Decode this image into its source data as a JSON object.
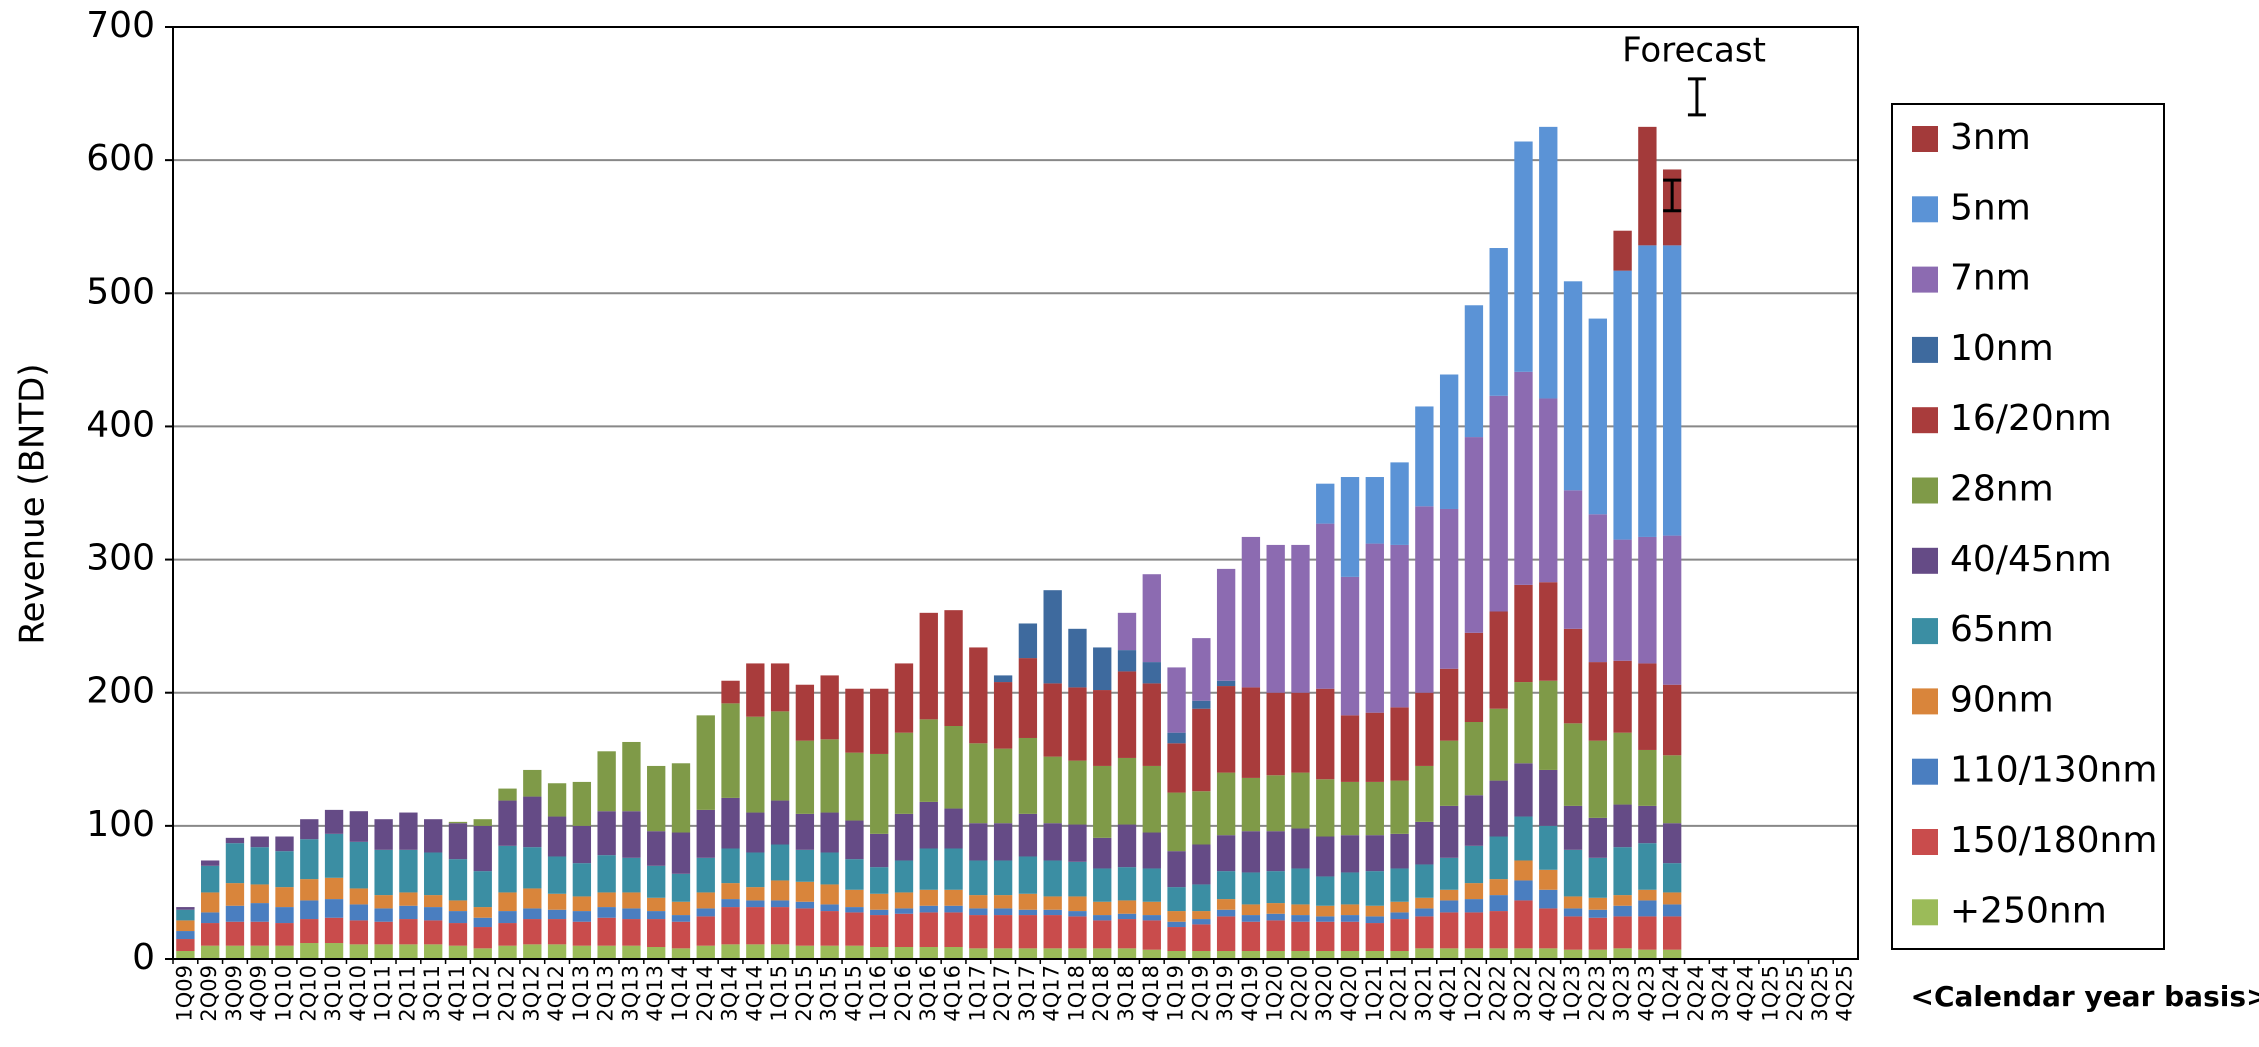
{
  "chart_data": {
    "type": "stacked_bar",
    "y_label": "Revenue (BNTD)",
    "annotations": [
      "Forecast",
      "<Calendar year basis>"
    ],
    "ylim": [
      0,
      700
    ],
    "yticks": [
      0,
      100,
      200,
      300,
      400,
      500,
      600,
      700
    ],
    "grid": true,
    "legend": "right",
    "categories": [
      "1Q09",
      "2Q09",
      "3Q09",
      "4Q09",
      "1Q10",
      "2Q10",
      "3Q10",
      "4Q10",
      "1Q11",
      "2Q11",
      "3Q11",
      "4Q11",
      "1Q12",
      "2Q12",
      "3Q12",
      "4Q12",
      "1Q13",
      "2Q13",
      "3Q13",
      "4Q13",
      "1Q14",
      "2Q14",
      "3Q14",
      "4Q14",
      "1Q15",
      "2Q15",
      "3Q15",
      "4Q15",
      "1Q16",
      "2Q16",
      "3Q16",
      "4Q16",
      "1Q17",
      "2Q17",
      "3Q17",
      "4Q17",
      "1Q18",
      "2Q18",
      "3Q18",
      "4Q18",
      "1Q19",
      "2Q19",
      "3Q19",
      "4Q19",
      "1Q20",
      "2Q20",
      "3Q20",
      "4Q20",
      "1Q21",
      "2Q21",
      "3Q21",
      "4Q21",
      "1Q22",
      "2Q22",
      "3Q22",
      "4Q22",
      "1Q23",
      "2Q23",
      "3Q23",
      "4Q23",
      "1Q24",
      "2Q24",
      "3Q24",
      "4Q24",
      "1Q25",
      "2Q25",
      "3Q25",
      "4Q25"
    ],
    "series": [
      {
        "name": "3nm",
        "color": "#a33a3a",
        "values": [
          0,
          0,
          0,
          0,
          0,
          0,
          0,
          0,
          0,
          0,
          0,
          0,
          0,
          0,
          0,
          0,
          0,
          0,
          0,
          0,
          0,
          0,
          0,
          0,
          0,
          0,
          0,
          0,
          0,
          0,
          0,
          0,
          0,
          0,
          0,
          0,
          0,
          0,
          0,
          0,
          0,
          0,
          0,
          0,
          0,
          0,
          0,
          0,
          0,
          0,
          0,
          0,
          0,
          0,
          0,
          0,
          0,
          0,
          30,
          89,
          57,
          null,
          null,
          null,
          null,
          null,
          null,
          null
        ]
      },
      {
        "name": "5nm",
        "color": "#5b93d6",
        "values": [
          0,
          0,
          0,
          0,
          0,
          0,
          0,
          0,
          0,
          0,
          0,
          0,
          0,
          0,
          0,
          0,
          0,
          0,
          0,
          0,
          0,
          0,
          0,
          0,
          0,
          0,
          0,
          0,
          0,
          0,
          0,
          0,
          0,
          0,
          0,
          0,
          0,
          0,
          0,
          0,
          0,
          0,
          0,
          0,
          0,
          0,
          30,
          75,
          50,
          62,
          75,
          101,
          99,
          111,
          173,
          204,
          157,
          147,
          202,
          219,
          218,
          null,
          null,
          null,
          null,
          null,
          null,
          null
        ]
      },
      {
        "name": "7nm",
        "color": "#8c6bb1",
        "values": [
          0,
          0,
          0,
          0,
          0,
          0,
          0,
          0,
          0,
          0,
          0,
          0,
          0,
          0,
          0,
          0,
          0,
          0,
          0,
          0,
          0,
          0,
          0,
          0,
          0,
          0,
          0,
          0,
          0,
          0,
          0,
          0,
          0,
          0,
          0,
          0,
          0,
          0,
          28,
          66,
          49,
          47,
          84,
          113,
          111,
          111,
          124,
          104,
          127,
          122,
          140,
          120,
          147,
          162,
          160,
          138,
          104,
          111,
          91,
          95,
          112,
          null,
          null,
          null,
          null,
          null,
          null,
          null
        ]
      },
      {
        "name": "10nm",
        "color": "#3e6a9e",
        "values": [
          0,
          0,
          0,
          0,
          0,
          0,
          0,
          0,
          0,
          0,
          0,
          0,
          0,
          0,
          0,
          0,
          0,
          0,
          0,
          0,
          0,
          0,
          0,
          0,
          0,
          0,
          0,
          0,
          0,
          0,
          0,
          0,
          0,
          5,
          26,
          70,
          44,
          32,
          16,
          16,
          8,
          6,
          4,
          0,
          0,
          0,
          0,
          0,
          0,
          0,
          0,
          0,
          0,
          0,
          0,
          0,
          0,
          0,
          0,
          0,
          0,
          null,
          null,
          null,
          null,
          null,
          null,
          null
        ]
      },
      {
        "name": "16/20nm",
        "color": "#a93c3c",
        "values": [
          0,
          0,
          0,
          0,
          0,
          0,
          0,
          0,
          0,
          0,
          0,
          0,
          0,
          0,
          0,
          0,
          0,
          0,
          0,
          0,
          0,
          0,
          17,
          40,
          36,
          42,
          48,
          48,
          49,
          52,
          80,
          87,
          72,
          50,
          60,
          55,
          55,
          57,
          65,
          62,
          37,
          62,
          65,
          68,
          62,
          60,
          68,
          50,
          52,
          55,
          55,
          54,
          67,
          73,
          73,
          74,
          71,
          59,
          54,
          65,
          53,
          null,
          null,
          null,
          null,
          null,
          null,
          null
        ]
      },
      {
        "name": "28nm",
        "color": "#7f9a48",
        "values": [
          0,
          0,
          0,
          0,
          0,
          0,
          0,
          0,
          0,
          0,
          0,
          1,
          5,
          9,
          20,
          25,
          33,
          45,
          52,
          49,
          52,
          71,
          71,
          72,
          67,
          55,
          55,
          51,
          60,
          61,
          62,
          62,
          60,
          56,
          57,
          50,
          48,
          54,
          50,
          50,
          44,
          40,
          47,
          40,
          42,
          42,
          43,
          40,
          40,
          40,
          42,
          49,
          55,
          54,
          61,
          67,
          62,
          58,
          54,
          42,
          51,
          null,
          null,
          null,
          null,
          null,
          null,
          null
        ]
      },
      {
        "name": "40/45nm",
        "color": "#654b86",
        "values": [
          2,
          4,
          4,
          8,
          11,
          15,
          18,
          23,
          23,
          28,
          25,
          27,
          34,
          34,
          38,
          30,
          28,
          33,
          35,
          26,
          31,
          36,
          38,
          30,
          33,
          27,
          30,
          29,
          25,
          35,
          35,
          30,
          28,
          28,
          32,
          28,
          28,
          23,
          32,
          27,
          27,
          30,
          27,
          31,
          30,
          30,
          30,
          28,
          27,
          26,
          32,
          39,
          38,
          42,
          40,
          42,
          33,
          30,
          32,
          28,
          30,
          null,
          null,
          null,
          null,
          null,
          null,
          null
        ]
      },
      {
        "name": "65nm",
        "color": "#3b8ea3",
        "values": [
          8,
          20,
          30,
          28,
          27,
          30,
          33,
          35,
          34,
          32,
          32,
          31,
          27,
          35,
          31,
          28,
          25,
          28,
          26,
          24,
          21,
          26,
          26,
          26,
          27,
          24,
          24,
          23,
          20,
          24,
          31,
          31,
          26,
          26,
          28,
          27,
          26,
          25,
          25,
          25,
          18,
          20,
          21,
          24,
          24,
          27,
          22,
          24,
          26,
          25,
          25,
          24,
          28,
          32,
          33,
          33,
          35,
          30,
          36,
          35,
          22,
          null,
          null,
          null,
          null,
          null,
          null,
          null
        ]
      },
      {
        "name": "90nm",
        "color": "#d9853b",
        "values": [
          8,
          15,
          17,
          14,
          15,
          16,
          16,
          12,
          10,
          10,
          9,
          8,
          8,
          14,
          15,
          12,
          11,
          11,
          12,
          10,
          10,
          12,
          12,
          10,
          15,
          15,
          15,
          13,
          12,
          12,
          12,
          12,
          10,
          10,
          12,
          10,
          11,
          10,
          10,
          10,
          8,
          6,
          8,
          8,
          8,
          8,
          8,
          8,
          8,
          8,
          8,
          8,
          12,
          12,
          15,
          15,
          9,
          9,
          8,
          8,
          9,
          null,
          null,
          null,
          null,
          null,
          null,
          null
        ]
      },
      {
        "name": "110/130nm",
        "color": "#4a7ec0",
        "values": [
          6,
          8,
          12,
          14,
          12,
          14,
          14,
          12,
          10,
          10,
          10,
          9,
          7,
          9,
          8,
          7,
          8,
          8,
          8,
          6,
          5,
          6,
          6,
          5,
          5,
          5,
          5,
          4,
          4,
          4,
          5,
          5,
          5,
          5,
          4,
          4,
          4,
          4,
          4,
          4,
          4,
          4,
          5,
          5,
          5,
          5,
          4,
          5,
          5,
          5,
          6,
          9,
          10,
          12,
          15,
          14,
          6,
          6,
          8,
          12,
          9,
          null,
          null,
          null,
          null,
          null,
          null,
          null
        ]
      },
      {
        "name": "150/180nm",
        "color": "#c94c4c",
        "values": [
          9,
          17,
          18,
          18,
          17,
          18,
          19,
          18,
          17,
          19,
          18,
          17,
          16,
          17,
          19,
          19,
          18,
          21,
          20,
          21,
          20,
          22,
          28,
          28,
          28,
          28,
          26,
          25,
          24,
          25,
          26,
          26,
          25,
          25,
          25,
          25,
          24,
          21,
          22,
          22,
          18,
          20,
          26,
          22,
          23,
          22,
          22,
          22,
          21,
          24,
          24,
          27,
          27,
          28,
          36,
          30,
          25,
          24,
          24,
          25,
          25,
          null,
          null,
          null,
          null,
          null,
          null,
          null
        ]
      },
      {
        "name": "+250nm",
        "color": "#9bbb59",
        "values": [
          6,
          10,
          10,
          10,
          10,
          12,
          12,
          11,
          11,
          11,
          11,
          10,
          8,
          10,
          11,
          11,
          10,
          10,
          10,
          9,
          8,
          10,
          11,
          11,
          11,
          10,
          10,
          10,
          9,
          9,
          9,
          9,
          8,
          8,
          8,
          8,
          8,
          8,
          8,
          7,
          6,
          6,
          6,
          6,
          6,
          6,
          6,
          6,
          6,
          6,
          8,
          8,
          8,
          8,
          8,
          8,
          7,
          7,
          8,
          7,
          7,
          null,
          null,
          null,
          null,
          null,
          null,
          null
        ]
      }
    ],
    "error_bars": [
      {
        "x": "1Q24",
        "low": 562,
        "high": 585
      },
      {
        "x": "2Q24",
        "low": 634,
        "high": 661
      }
    ]
  }
}
